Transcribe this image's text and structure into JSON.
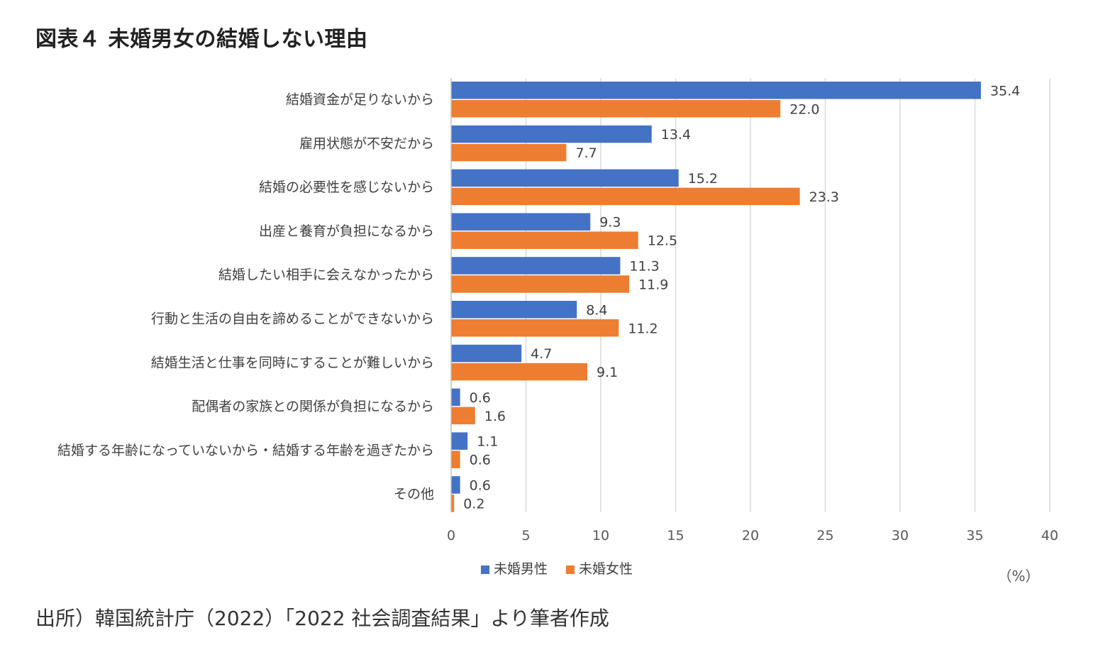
{
  "figure": {
    "title": "図表４ 未婚男女の結婚しない理由",
    "source": "出所）韓国統計庁（2022）「2022 社会調査結果」より筆者作成"
  },
  "chart_data": {
    "type": "bar",
    "orientation": "horizontal",
    "categories": [
      "結婚資金が足りないから",
      "雇用状態が不安だから",
      "結婚の必要性を感じないから",
      "出産と養育が負担になるから",
      "結婚したい相手に会えなかったから",
      "行動と生活の自由を諦めることができないから",
      "結婚生活と仕事を同時にすることが難しいから",
      "配偶者の家族との関係が負担になるから",
      "結婚する年齢になっていないから・結婚する年齢を過ぎたから",
      "その他"
    ],
    "series": [
      {
        "name": "未婚男性",
        "color": "#4472C4",
        "values": [
          35.4,
          13.4,
          15.2,
          9.3,
          11.3,
          8.4,
          4.7,
          0.6,
          1.1,
          0.6
        ]
      },
      {
        "name": "未婚女性",
        "color": "#ED7D31",
        "values": [
          22.0,
          7.7,
          23.3,
          12.5,
          11.9,
          11.2,
          9.1,
          1.6,
          0.6,
          0.2
        ]
      }
    ],
    "xlim": [
      0,
      40
    ],
    "xticks": [
      0,
      5,
      10,
      15,
      20,
      25,
      30,
      35,
      40
    ],
    "unit": "（%）",
    "grid": true,
    "legend_position": "bottom"
  }
}
